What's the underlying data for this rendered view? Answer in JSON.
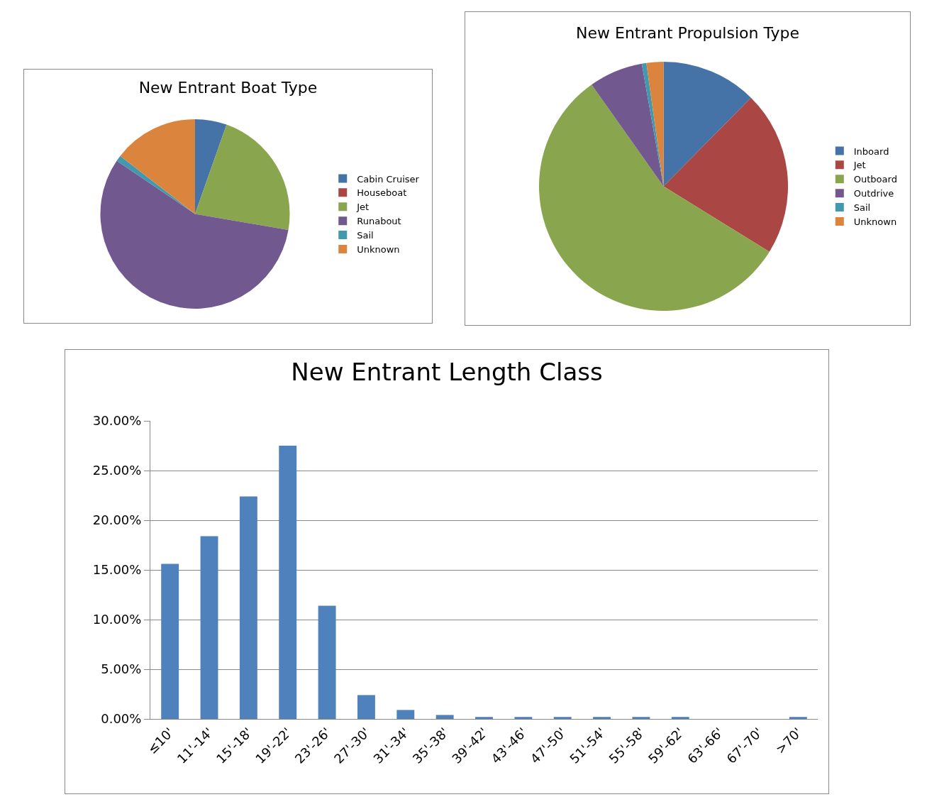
{
  "chart_data": [
    {
      "type": "pie",
      "title": "New Entrant Boat Type",
      "categories": [
        "Cabin Cruiser",
        "Houseboat",
        "Jet",
        "Runabout",
        "Sail",
        "Unknown"
      ],
      "values": [
        5.4,
        0,
        22.3,
        56.8,
        1.0,
        14.5
      ],
      "colors": [
        "#4572a7",
        "#aa4643",
        "#89a54e",
        "#71588f",
        "#4198af",
        "#db843d"
      ],
      "legend": "right"
    },
    {
      "type": "pie",
      "title": "New Entrant Propulsion Type",
      "categories": [
        "Inboard",
        "Jet",
        "Outboard",
        "Outdrive",
        "Sail",
        "Unknown"
      ],
      "values": [
        12.4,
        21.4,
        56.4,
        7.0,
        0.6,
        2.2
      ],
      "colors": [
        "#4572a7",
        "#aa4643",
        "#89a54e",
        "#71588f",
        "#4198af",
        "#db843d"
      ],
      "legend": "right"
    },
    {
      "type": "bar",
      "title": "New Entrant Length Class",
      "categories": [
        "≤10'",
        "11'-14'",
        "15'-18'",
        "19'-22'",
        "23'-26'",
        "27'-30'",
        "31'-34'",
        "35'-38'",
        "39'-42'",
        "43'-46'",
        "47'-50'",
        "51'-54'",
        "55'-58'",
        "59'-62'",
        "63'-66'",
        "67'-70'",
        ">70'"
      ],
      "values": [
        15.6,
        18.4,
        22.4,
        27.5,
        11.4,
        2.4,
        0.9,
        0.4,
        0.2,
        0.2,
        0.2,
        0.2,
        0.2,
        0.2,
        0,
        0,
        0.2
      ],
      "color": "#4f81bd",
      "ylim": [
        0,
        30
      ],
      "yticks": [
        {
          "value": 0,
          "label": "0.00%"
        },
        {
          "value": 5,
          "label": "5.00%"
        },
        {
          "value": 10,
          "label": "10.00%"
        },
        {
          "value": 15,
          "label": "15.00%"
        },
        {
          "value": 20,
          "label": "20.00%"
        },
        {
          "value": 25,
          "label": "25.00%"
        },
        {
          "value": 30,
          "label": "30.00%"
        }
      ],
      "grid": "y",
      "legend": false
    }
  ]
}
